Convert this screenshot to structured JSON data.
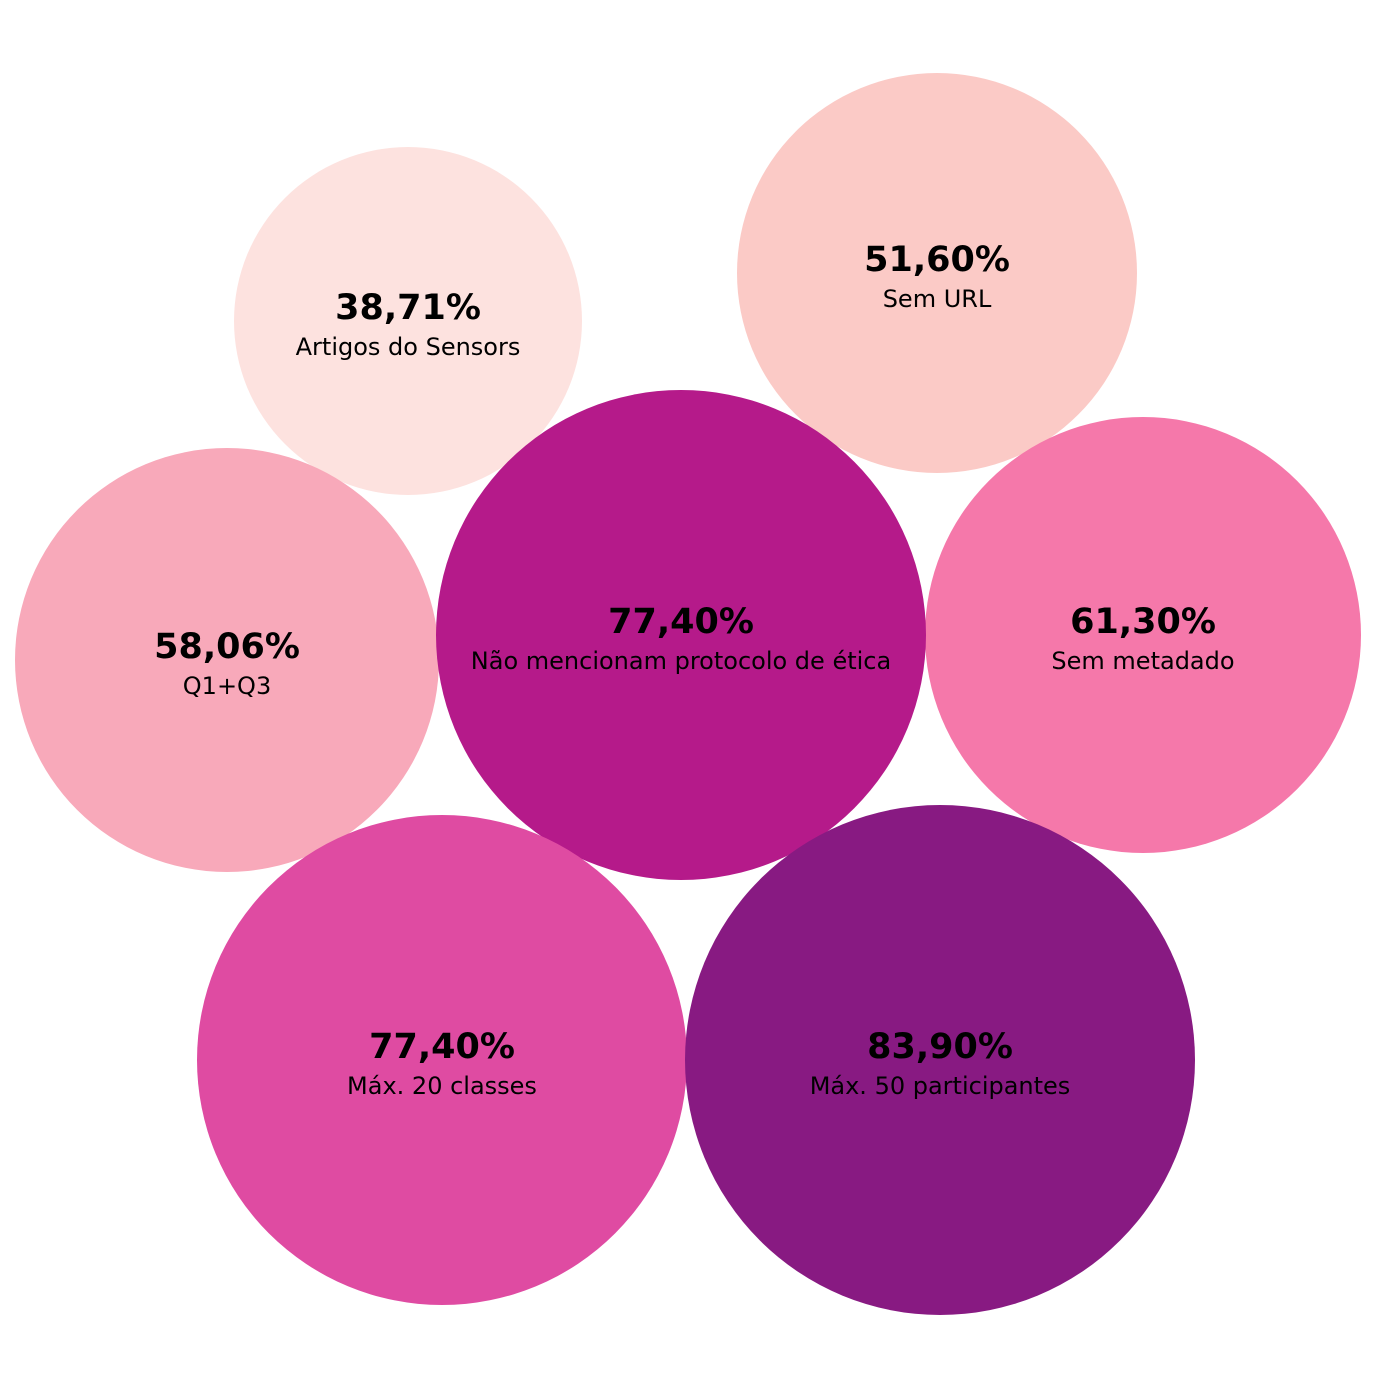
{
  "chart_data": {
    "type": "bubble",
    "title": "",
    "items": [
      {
        "value_label": "38,71%",
        "label": "Artigos do Sensors",
        "value": 38.71,
        "color": "#fde2df"
      },
      {
        "value_label": "51,60%",
        "label": "Sem URL",
        "value": 51.6,
        "color": "#fbcac6"
      },
      {
        "value_label": "58,06%",
        "label": "Q1+Q3",
        "value": 58.06,
        "color": "#f8a9ba"
      },
      {
        "value_label": "61,30%",
        "label": "Sem metadado",
        "value": 61.3,
        "color": "#f578aa"
      },
      {
        "value_label": "77,40%",
        "label": "Não mencionam protocolo de ética",
        "value": 77.4,
        "color": "#b51a8a"
      },
      {
        "value_label": "77,40%",
        "label": "Máx. 20 classes",
        "value": 77.4,
        "color": "#df4ba2"
      },
      {
        "value_label": "83,90%",
        "label": "Máx. 50 participantes",
        "value": 83.9,
        "color": "#881a82"
      }
    ]
  }
}
